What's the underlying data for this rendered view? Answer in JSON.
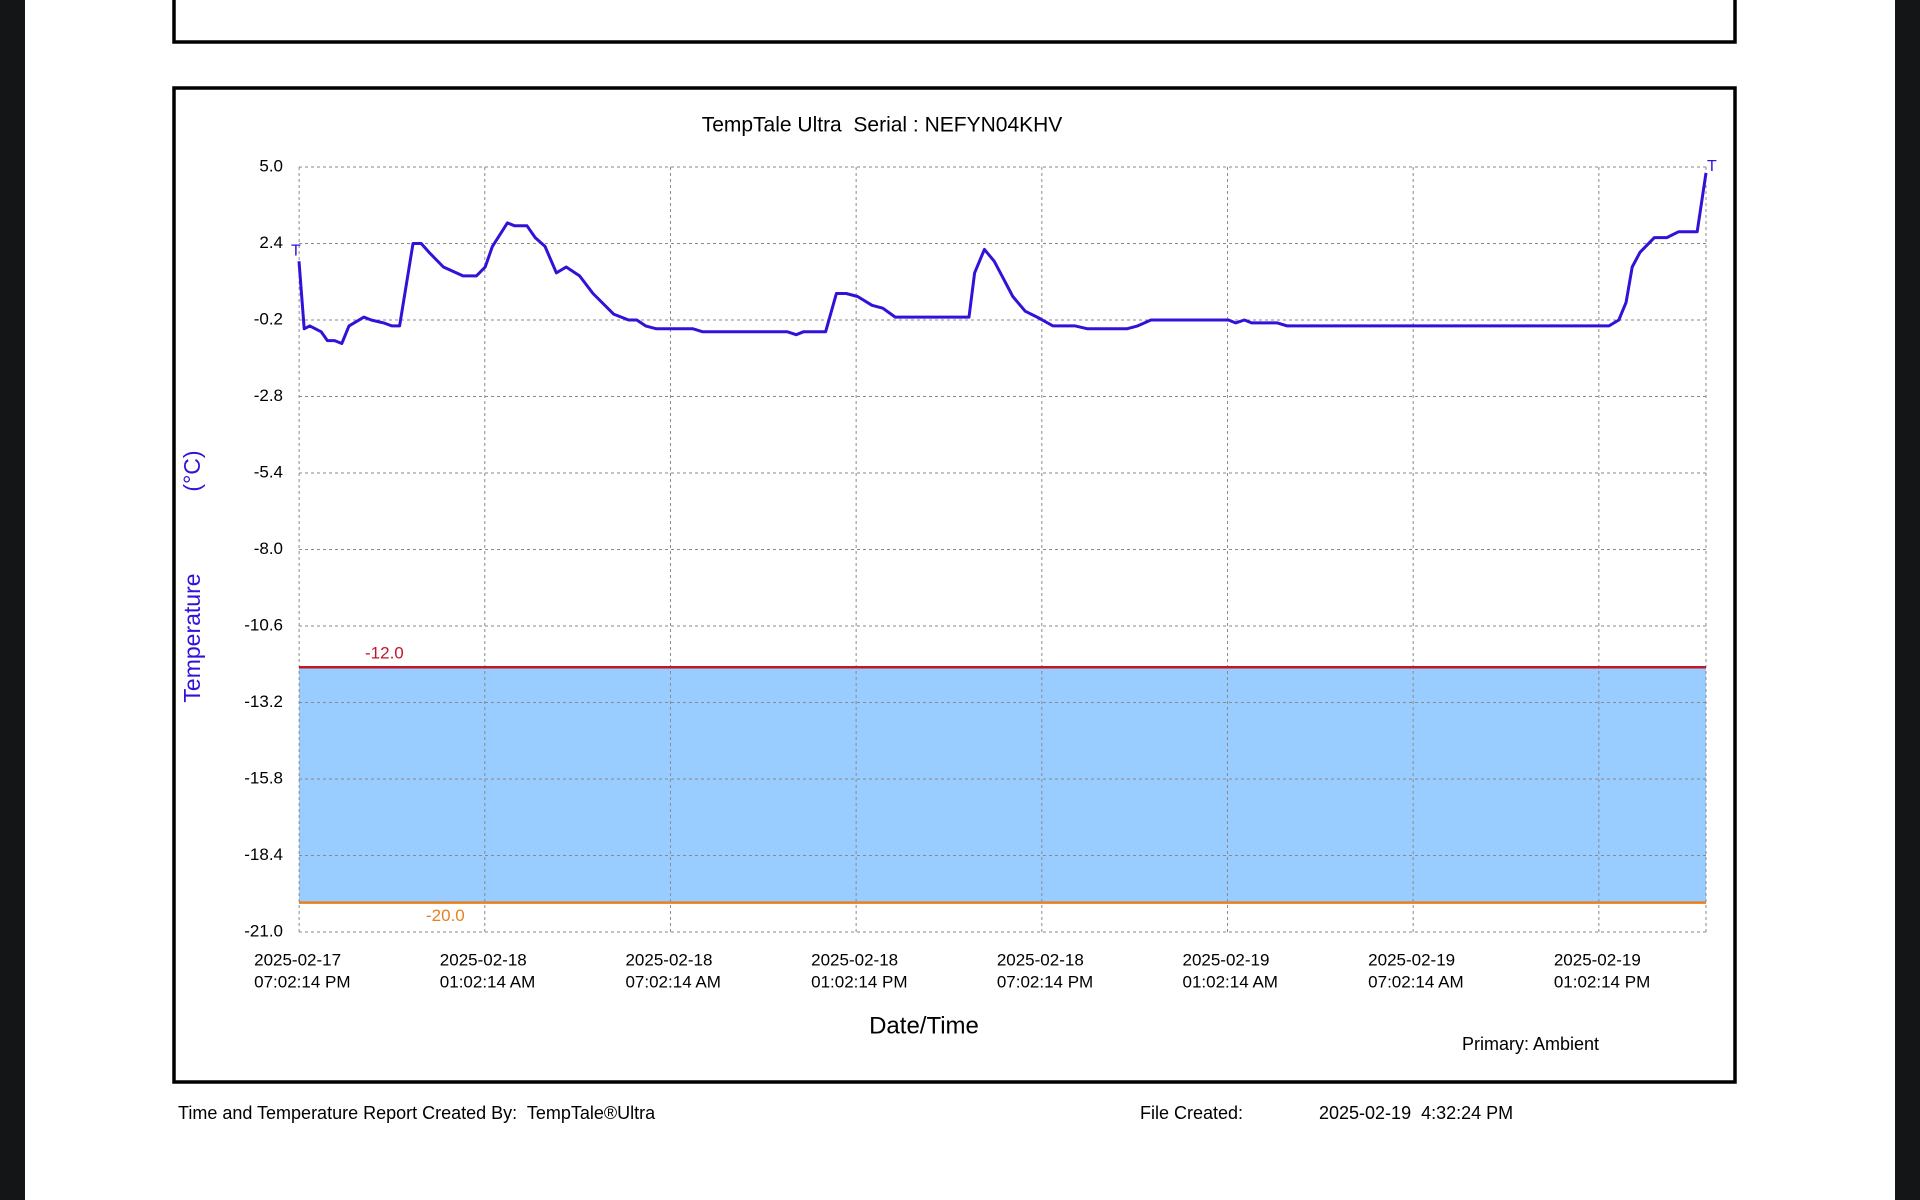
{
  "chart_data": {
    "type": "line",
    "title": "TempTale Ultra  Serial : NEFYN04KHV",
    "y_label": "Temperature",
    "y_unit": "(°C)",
    "x_label": "Date/Time",
    "note": "Primary: Ambient",
    "start_marker": "T",
    "end_marker": "T",
    "color": "#3410d8",
    "x": [
      "2025-02-17T19:02",
      "2025-02-17T19:12",
      "2025-02-17T19:23",
      "2025-02-17T19:45",
      "2025-02-17T19:57",
      "2025-02-17T20:11",
      "2025-02-17T20:25",
      "2025-02-17T20:39",
      "2025-02-17T21:08",
      "2025-02-17T21:22",
      "2025-02-17T21:46",
      "2025-02-17T22:02",
      "2025-02-17T22:17",
      "2025-02-17T22:43",
      "2025-02-17T22:59",
      "2025-02-17T23:14",
      "2025-02-17T23:42",
      "2025-02-18T00:20",
      "2025-02-18T00:46",
      "2025-02-18T01:03",
      "2025-02-18T01:17",
      "2025-02-18T01:46",
      "2025-02-18T02:00",
      "2025-02-18T02:24",
      "2025-02-18T02:40",
      "2025-02-18T02:59",
      "2025-02-18T03:21",
      "2025-02-18T03:40",
      "2025-02-18T04:06",
      "2025-02-18T04:32",
      "2025-02-18T05:12",
      "2025-02-18T05:41",
      "2025-02-18T05:57",
      "2025-02-18T06:14",
      "2025-02-18T06:35",
      "2025-02-18T07:46",
      "2025-02-18T08:05",
      "2025-02-18T10:49",
      "2025-02-18T11:06",
      "2025-02-18T11:20",
      "2025-02-18T12:03",
      "2025-02-18T12:24",
      "2025-02-18T12:43",
      "2025-02-18T13:05",
      "2025-02-18T13:33",
      "2025-02-18T13:54",
      "2025-02-18T14:18",
      "2025-02-18T16:41",
      "2025-02-18T16:52",
      "2025-02-18T17:11",
      "2025-02-18T17:30",
      "2025-02-18T17:45",
      "2025-02-18T18:06",
      "2025-02-18T18:30",
      "2025-02-18T18:53",
      "2025-02-18T19:24",
      "2025-02-18T20:07",
      "2025-02-18T20:31",
      "2025-02-18T21:47",
      "2025-02-18T22:08",
      "2025-02-18T22:34",
      "2025-02-19T01:04",
      "2025-02-19T01:18",
      "2025-02-19T01:35",
      "2025-02-19T01:49",
      "2025-02-19T02:39",
      "2025-02-19T02:58",
      "2025-02-19T13:01",
      "2025-02-19T13:22",
      "2025-02-19T13:41",
      "2025-02-19T13:55",
      "2025-02-19T14:07",
      "2025-02-19T14:22",
      "2025-02-19T14:50",
      "2025-02-19T15:14",
      "2025-02-19T15:37",
      "2025-02-19T16:13",
      "2025-02-19T16:30"
    ],
    "values": [
      1.8,
      -0.5,
      -0.4,
      -0.6,
      -0.9,
      -0.9,
      -1.0,
      -0.4,
      -0.1,
      -0.2,
      -0.3,
      -0.4,
      -0.4,
      2.4,
      2.4,
      2.1,
      1.6,
      1.3,
      1.3,
      1.6,
      2.3,
      3.1,
      3.0,
      3.0,
      2.6,
      2.3,
      1.4,
      1.6,
      1.3,
      0.7,
      0.0,
      -0.2,
      -0.2,
      -0.4,
      -0.5,
      -0.5,
      -0.6,
      -0.6,
      -0.7,
      -0.6,
      -0.6,
      0.7,
      0.7,
      0.6,
      0.3,
      0.2,
      -0.1,
      -0.1,
      1.4,
      2.2,
      1.8,
      1.3,
      0.6,
      0.1,
      -0.1,
      -0.4,
      -0.4,
      -0.5,
      -0.5,
      -0.4,
      -0.2,
      -0.2,
      -0.3,
      -0.2,
      -0.3,
      -0.3,
      -0.4,
      -0.4,
      -0.4,
      -0.2,
      0.4,
      1.6,
      2.1,
      2.6,
      2.6,
      2.8,
      2.8,
      4.8
    ],
    "xlim": [
      "2025-02-17T19:02",
      "2025-02-19T16:30"
    ],
    "xticks": [
      {
        "value": "2025-02-17T19:02:14",
        "label": [
          "2025-02-17",
          "07:02:14 PM"
        ]
      },
      {
        "value": "2025-02-18T01:02:14",
        "label": [
          "2025-02-18",
          "01:02:14 AM"
        ]
      },
      {
        "value": "2025-02-18T07:02:14",
        "label": [
          "2025-02-18",
          "07:02:14 AM"
        ]
      },
      {
        "value": "2025-02-18T13:02:14",
        "label": [
          "2025-02-18",
          "01:02:14 PM"
        ]
      },
      {
        "value": "2025-02-18T19:02:14",
        "label": [
          "2025-02-18",
          "07:02:14 PM"
        ]
      },
      {
        "value": "2025-02-19T01:02:14",
        "label": [
          "2025-02-19",
          "01:02:14 AM"
        ]
      },
      {
        "value": "2025-02-19T07:02:14",
        "label": [
          "2025-02-19",
          "07:02:14 AM"
        ]
      },
      {
        "value": "2025-02-19T13:02:14",
        "label": [
          "2025-02-19",
          "01:02:14 PM"
        ]
      }
    ],
    "ylim": [
      -21,
      5
    ],
    "yticks": [
      {
        "value": 5,
        "label": "5.0"
      },
      2.4,
      -0.2,
      -2.8,
      -5.4,
      {
        "value": -8,
        "label": "-8.0"
      },
      -10.6,
      -13.2,
      -15.8,
      -18.4,
      {
        "value": -21,
        "label": "-21.0"
      }
    ],
    "grid": true,
    "thresholds": [
      {
        "value": -12,
        "label": "-12.0",
        "color": "#c0182a"
      },
      {
        "value": -20,
        "label": "-20.0",
        "color": "#e8801c"
      }
    ],
    "band_color": "#99ccff"
  },
  "footer": {
    "created_by": "Time and Temperature Report Created By:  TempTale®Ultra",
    "file_created_label": "File Created:",
    "file_created": "2025-02-19  4:32:24 PM"
  }
}
